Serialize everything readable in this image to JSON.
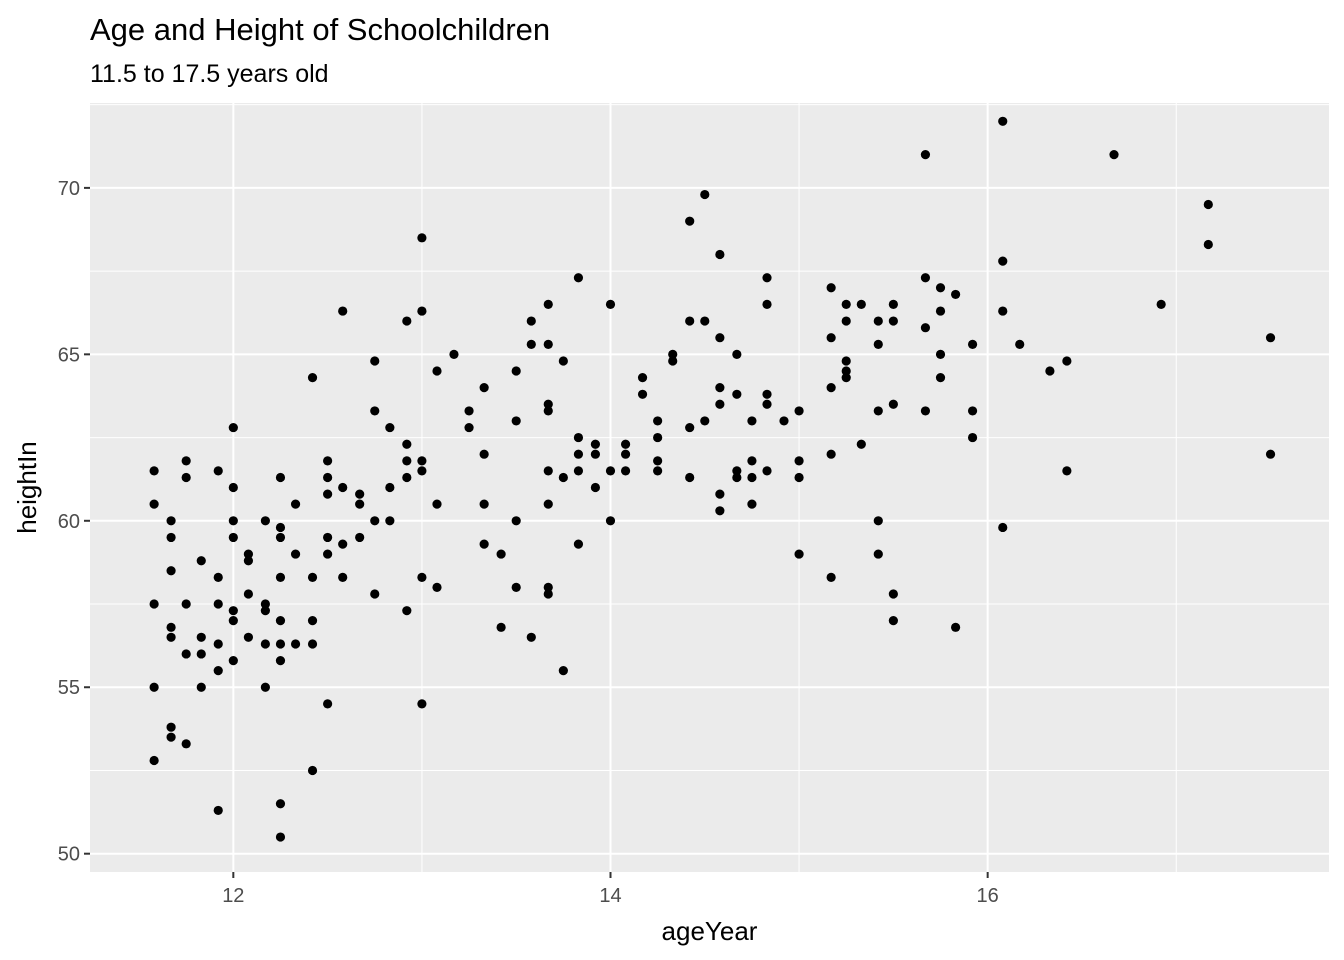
{
  "chart_data": {
    "type": "scatter",
    "title": "Age and Height of Schoolchildren",
    "subtitle": "11.5 to 17.5 years old",
    "xlabel": "ageYear",
    "ylabel": "heightIn",
    "xlim": [
      11.24,
      17.81
    ],
    "ylim": [
      49.45,
      72.55
    ],
    "x_ticks": [
      12,
      14,
      16
    ],
    "x_tick_labels": [
      "12",
      "14",
      "16"
    ],
    "y_ticks": [
      50,
      55,
      60,
      65,
      70
    ],
    "y_tick_labels": [
      "50",
      "55",
      "60",
      "65",
      "70"
    ],
    "grid": true,
    "legend": "none",
    "colors": {
      "panel": "#ebebeb",
      "grid": "#ffffff",
      "point": "#000000",
      "tick_text": "#4d4d4d"
    },
    "points": [
      [
        11.58,
        61.5
      ],
      [
        11.58,
        60.5
      ],
      [
        11.58,
        57.5
      ],
      [
        11.58,
        55.0
      ],
      [
        11.58,
        52.8
      ],
      [
        11.67,
        60.0
      ],
      [
        11.67,
        59.5
      ],
      [
        11.67,
        58.5
      ],
      [
        11.67,
        56.8
      ],
      [
        11.67,
        56.5
      ],
      [
        11.67,
        53.8
      ],
      [
        11.67,
        53.5
      ],
      [
        11.75,
        61.8
      ],
      [
        11.75,
        61.3
      ],
      [
        11.75,
        57.5
      ],
      [
        11.75,
        56.0
      ],
      [
        11.75,
        53.3
      ],
      [
        11.83,
        58.8
      ],
      [
        11.83,
        56.5
      ],
      [
        11.83,
        56.0
      ],
      [
        11.83,
        55.0
      ],
      [
        11.92,
        61.5
      ],
      [
        11.92,
        58.3
      ],
      [
        11.92,
        57.5
      ],
      [
        11.92,
        56.3
      ],
      [
        11.92,
        55.5
      ],
      [
        11.92,
        51.3
      ],
      [
        12.0,
        62.8
      ],
      [
        12.0,
        61.0
      ],
      [
        12.0,
        60.0
      ],
      [
        12.0,
        59.5
      ],
      [
        12.0,
        57.3
      ],
      [
        12.0,
        57.0
      ],
      [
        12.0,
        55.8
      ],
      [
        12.08,
        59.0
      ],
      [
        12.08,
        58.8
      ],
      [
        12.08,
        57.8
      ],
      [
        12.08,
        56.5
      ],
      [
        12.17,
        60.0
      ],
      [
        12.17,
        57.5
      ],
      [
        12.17,
        57.3
      ],
      [
        12.17,
        56.3
      ],
      [
        12.17,
        55.0
      ],
      [
        12.25,
        61.3
      ],
      [
        12.25,
        59.8
      ],
      [
        12.25,
        59.5
      ],
      [
        12.25,
        58.3
      ],
      [
        12.25,
        57.0
      ],
      [
        12.25,
        56.3
      ],
      [
        12.25,
        55.8
      ],
      [
        12.25,
        51.5
      ],
      [
        12.25,
        50.5
      ],
      [
        12.33,
        60.5
      ],
      [
        12.33,
        59.0
      ],
      [
        12.33,
        56.3
      ],
      [
        12.42,
        64.3
      ],
      [
        12.42,
        58.3
      ],
      [
        12.42,
        57.0
      ],
      [
        12.42,
        56.3
      ],
      [
        12.42,
        52.5
      ],
      [
        12.5,
        61.8
      ],
      [
        12.5,
        61.3
      ],
      [
        12.5,
        60.8
      ],
      [
        12.5,
        59.5
      ],
      [
        12.5,
        59.0
      ],
      [
        12.5,
        54.5
      ],
      [
        12.58,
        66.3
      ],
      [
        12.58,
        61.0
      ],
      [
        12.58,
        59.3
      ],
      [
        12.58,
        58.3
      ],
      [
        12.67,
        60.8
      ],
      [
        12.67,
        60.5
      ],
      [
        12.67,
        59.5
      ],
      [
        12.75,
        64.8
      ],
      [
        12.75,
        63.3
      ],
      [
        12.75,
        60.0
      ],
      [
        12.75,
        57.8
      ],
      [
        12.83,
        62.8
      ],
      [
        12.83,
        61.0
      ],
      [
        12.83,
        60.0
      ],
      [
        12.92,
        66.0
      ],
      [
        12.92,
        62.3
      ],
      [
        12.92,
        61.8
      ],
      [
        12.92,
        61.3
      ],
      [
        12.92,
        57.3
      ],
      [
        13.0,
        68.5
      ],
      [
        13.0,
        66.3
      ],
      [
        13.0,
        61.8
      ],
      [
        13.0,
        61.5
      ],
      [
        13.0,
        58.3
      ],
      [
        13.0,
        54.5
      ],
      [
        13.08,
        64.5
      ],
      [
        13.08,
        60.5
      ],
      [
        13.08,
        58.0
      ],
      [
        13.17,
        65.0
      ],
      [
        13.25,
        63.3
      ],
      [
        13.25,
        62.8
      ],
      [
        13.33,
        64.0
      ],
      [
        13.33,
        62.0
      ],
      [
        13.33,
        60.5
      ],
      [
        13.33,
        59.3
      ],
      [
        13.42,
        59.0
      ],
      [
        13.42,
        56.8
      ],
      [
        13.5,
        64.5
      ],
      [
        13.5,
        63.0
      ],
      [
        13.5,
        60.0
      ],
      [
        13.5,
        58.0
      ],
      [
        13.58,
        66.0
      ],
      [
        13.58,
        65.3
      ],
      [
        13.58,
        56.5
      ],
      [
        13.67,
        66.5
      ],
      [
        13.67,
        65.3
      ],
      [
        13.67,
        63.5
      ],
      [
        13.67,
        63.3
      ],
      [
        13.67,
        61.5
      ],
      [
        13.67,
        60.5
      ],
      [
        13.67,
        58.0
      ],
      [
        13.67,
        57.8
      ],
      [
        13.75,
        64.8
      ],
      [
        13.75,
        61.3
      ],
      [
        13.75,
        55.5
      ],
      [
        13.83,
        67.3
      ],
      [
        13.83,
        62.5
      ],
      [
        13.83,
        62.0
      ],
      [
        13.83,
        61.5
      ],
      [
        13.83,
        59.3
      ],
      [
        13.92,
        62.3
      ],
      [
        13.92,
        62.0
      ],
      [
        13.92,
        61.0
      ],
      [
        14.0,
        66.5
      ],
      [
        14.0,
        61.5
      ],
      [
        14.0,
        60.0
      ],
      [
        14.08,
        62.3
      ],
      [
        14.08,
        62.0
      ],
      [
        14.08,
        61.5
      ],
      [
        14.17,
        64.3
      ],
      [
        14.17,
        63.8
      ],
      [
        14.25,
        63.0
      ],
      [
        14.25,
        62.5
      ],
      [
        14.25,
        61.8
      ],
      [
        14.25,
        61.5
      ],
      [
        14.33,
        65.0
      ],
      [
        14.33,
        64.8
      ],
      [
        14.42,
        69.0
      ],
      [
        14.42,
        66.0
      ],
      [
        14.42,
        62.8
      ],
      [
        14.42,
        61.3
      ],
      [
        14.5,
        69.8
      ],
      [
        14.5,
        66.0
      ],
      [
        14.5,
        63.0
      ],
      [
        14.58,
        68.0
      ],
      [
        14.58,
        65.5
      ],
      [
        14.58,
        64.0
      ],
      [
        14.58,
        63.5
      ],
      [
        14.58,
        60.8
      ],
      [
        14.58,
        60.3
      ],
      [
        14.67,
        65.0
      ],
      [
        14.67,
        63.8
      ],
      [
        14.67,
        61.5
      ],
      [
        14.67,
        61.3
      ],
      [
        14.75,
        63.0
      ],
      [
        14.75,
        61.8
      ],
      [
        14.75,
        61.3
      ],
      [
        14.75,
        60.5
      ],
      [
        14.83,
        67.3
      ],
      [
        14.83,
        66.5
      ],
      [
        14.83,
        63.8
      ],
      [
        14.83,
        63.5
      ],
      [
        14.83,
        61.5
      ],
      [
        14.92,
        63.0
      ],
      [
        15.0,
        63.3
      ],
      [
        15.0,
        61.8
      ],
      [
        15.0,
        61.3
      ],
      [
        15.0,
        59.0
      ],
      [
        15.17,
        67.0
      ],
      [
        15.17,
        65.5
      ],
      [
        15.17,
        64.0
      ],
      [
        15.17,
        62.0
      ],
      [
        15.17,
        58.3
      ],
      [
        15.25,
        66.5
      ],
      [
        15.25,
        66.0
      ],
      [
        15.25,
        64.8
      ],
      [
        15.25,
        64.5
      ],
      [
        15.25,
        64.3
      ],
      [
        15.33,
        66.5
      ],
      [
        15.33,
        62.3
      ],
      [
        15.42,
        66.0
      ],
      [
        15.42,
        65.3
      ],
      [
        15.42,
        63.3
      ],
      [
        15.42,
        60.0
      ],
      [
        15.42,
        59.0
      ],
      [
        15.5,
        66.5
      ],
      [
        15.5,
        66.0
      ],
      [
        15.5,
        63.5
      ],
      [
        15.5,
        57.8
      ],
      [
        15.5,
        57.0
      ],
      [
        15.67,
        71.0
      ],
      [
        15.67,
        67.3
      ],
      [
        15.67,
        65.8
      ],
      [
        15.67,
        63.3
      ],
      [
        15.75,
        67.0
      ],
      [
        15.75,
        66.3
      ],
      [
        15.75,
        65.0
      ],
      [
        15.75,
        64.3
      ],
      [
        15.83,
        66.8
      ],
      [
        15.83,
        56.8
      ],
      [
        15.92,
        65.3
      ],
      [
        15.92,
        63.3
      ],
      [
        15.92,
        62.5
      ],
      [
        16.08,
        72.0
      ],
      [
        16.08,
        67.8
      ],
      [
        16.08,
        66.3
      ],
      [
        16.08,
        59.8
      ],
      [
        16.17,
        65.3
      ],
      [
        16.33,
        64.5
      ],
      [
        16.42,
        64.8
      ],
      [
        16.42,
        61.5
      ],
      [
        16.67,
        71.0
      ],
      [
        16.92,
        66.5
      ],
      [
        17.17,
        69.5
      ],
      [
        17.17,
        68.3
      ],
      [
        17.5,
        65.5
      ],
      [
        17.5,
        62.0
      ]
    ]
  }
}
